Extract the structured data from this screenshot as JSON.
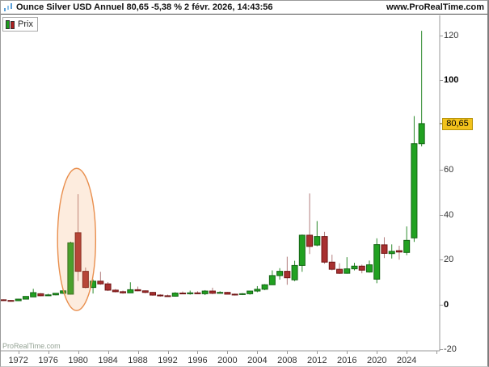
{
  "title_bar": {
    "title": "Ounce Silver USD Annuel 80,65 -5,38 % 2 févr. 2026, 14:43:56",
    "url": "www.ProRealTime.com"
  },
  "legend": {
    "label": "Prix"
  },
  "watermark": "ProRealTime.com",
  "price_tag": {
    "text": "80,65"
  },
  "colors": {
    "up_fill": "#21a121",
    "up_border": "#146414",
    "up_wick": "#2c8a2c",
    "down_fill": "#a83030",
    "down_border": "#701414",
    "down_wick": "#b27d7d",
    "axis": "#999999",
    "tick_label": "#333333",
    "ellipse_stroke": "#e98f4e",
    "ellipse_fill": "rgba(244,160,90,0.20)",
    "tag_bg": "#f2c21c",
    "tag_border": "#b8940c"
  },
  "highlight_ellipse": {
    "center_year": 1979.8,
    "center_value": 29.0,
    "rx_years": 2.55,
    "ry_values": 31.7
  },
  "chart_data": {
    "type": "candlestick",
    "title": "Ounce Silver USD Annuel",
    "instrument": "Ounce Silver USD",
    "timeframe": "Annuel",
    "last_price": 80.65,
    "change_pct": "-5,38 %",
    "timestamp": "2 févr. 2026, 14:43:56",
    "ylim": [
      -20.6,
      128
    ],
    "grid": false,
    "y_ticks": [
      {
        "value": 120,
        "label": "120",
        "bold": false
      },
      {
        "value": 100,
        "label": "100",
        "bold": true
      },
      {
        "value": 60,
        "label": "60",
        "bold": false
      },
      {
        "value": 40,
        "label": "40",
        "bold": false
      },
      {
        "value": 20,
        "label": "20",
        "bold": false
      },
      {
        "value": 0,
        "label": "0",
        "bold": true
      },
      {
        "value": -20,
        "label": "-20",
        "bold": false
      }
    ],
    "x_ticks": [
      {
        "year": 1972,
        "label": "1972"
      },
      {
        "year": 1976,
        "label": "1976"
      },
      {
        "year": 1980,
        "label": "1980"
      },
      {
        "year": 1984,
        "label": "1984"
      },
      {
        "year": 1988,
        "label": "1988"
      },
      {
        "year": 1992,
        "label": "1992"
      },
      {
        "year": 1996,
        "label": "1996"
      },
      {
        "year": 2000,
        "label": "2000"
      },
      {
        "year": 2004,
        "label": "2004"
      },
      {
        "year": 2008,
        "label": "2008"
      },
      {
        "year": 2012,
        "label": "2012"
      },
      {
        "year": 2016,
        "label": "2016"
      },
      {
        "year": 2020,
        "label": "2020"
      },
      {
        "year": 2024,
        "label": "2024"
      },
      {
        "year": 2028,
        "label": ""
      }
    ],
    "ohlc_columns": [
      "year",
      "open",
      "high",
      "low",
      "close"
    ],
    "ohlc": [
      [
        1970,
        2.1,
        2.3,
        1.6,
        1.8
      ],
      [
        1971,
        1.8,
        2.0,
        1.25,
        1.45
      ],
      [
        1972,
        1.7,
        2.55,
        1.6,
        2.4
      ],
      [
        1973,
        2.4,
        3.7,
        2.3,
        3.6
      ],
      [
        1974,
        3.4,
        7.0,
        3.3,
        5.3
      ],
      [
        1975,
        4.8,
        5.1,
        3.7,
        3.9
      ],
      [
        1976,
        3.9,
        4.8,
        3.8,
        4.3
      ],
      [
        1977,
        4.3,
        5.1,
        4.1,
        5.0
      ],
      [
        1978,
        5.0,
        6.4,
        4.7,
        6.1
      ],
      [
        1979,
        4.6,
        28.0,
        4.4,
        27.5
      ],
      [
        1980,
        32.0,
        49.2,
        10.5,
        14.8
      ],
      [
        1981,
        14.8,
        16.5,
        7.2,
        7.6
      ],
      [
        1982,
        7.6,
        11.2,
        4.9,
        10.4
      ],
      [
        1983,
        10.4,
        14.6,
        8.8,
        9.2
      ],
      [
        1984,
        9.2,
        10.0,
        6.0,
        6.4
      ],
      [
        1985,
        6.4,
        6.9,
        5.4,
        5.7
      ],
      [
        1986,
        5.7,
        6.2,
        4.8,
        5.2
      ],
      [
        1987,
        5.2,
        9.9,
        5.1,
        6.6
      ],
      [
        1988,
        6.6,
        8.0,
        5.9,
        6.1
      ],
      [
        1989,
        6.1,
        6.3,
        5.0,
        5.4
      ],
      [
        1990,
        5.4,
        5.6,
        3.9,
        4.2
      ],
      [
        1991,
        4.2,
        4.6,
        3.5,
        3.9
      ],
      [
        1992,
        3.9,
        4.4,
        3.6,
        3.7
      ],
      [
        1993,
        3.7,
        5.5,
        3.5,
        5.1
      ],
      [
        1994,
        5.1,
        5.8,
        4.6,
        4.8
      ],
      [
        1995,
        4.8,
        6.2,
        4.4,
        5.2
      ],
      [
        1996,
        5.2,
        5.9,
        4.7,
        4.8
      ],
      [
        1997,
        4.8,
        6.4,
        4.2,
        6.0
      ],
      [
        1998,
        6.0,
        7.5,
        4.6,
        5.0
      ],
      [
        1999,
        5.0,
        5.9,
        4.9,
        5.4
      ],
      [
        2000,
        5.4,
        5.6,
        4.6,
        4.6
      ],
      [
        2001,
        4.6,
        4.9,
        4.0,
        4.5
      ],
      [
        2002,
        4.5,
        5.1,
        4.2,
        4.8
      ],
      [
        2003,
        4.8,
        6.1,
        4.4,
        6.0
      ],
      [
        2004,
        6.0,
        8.2,
        5.5,
        6.8
      ],
      [
        2005,
        6.8,
        9.1,
        6.4,
        8.8
      ],
      [
        2006,
        8.8,
        15.2,
        8.7,
        12.9
      ],
      [
        2007,
        12.9,
        16.2,
        11.1,
        14.8
      ],
      [
        2008,
        14.8,
        21.3,
        8.8,
        11.9
      ],
      [
        2009,
        11.0,
        19.5,
        10.4,
        17.4
      ],
      [
        2010,
        17.4,
        31.2,
        14.6,
        30.9
      ],
      [
        2011,
        30.9,
        49.5,
        22.5,
        25.9
      ],
      [
        2012,
        26.5,
        37.2,
        26.0,
        30.3
      ],
      [
        2013,
        30.3,
        32.4,
        18.2,
        18.9
      ],
      [
        2014,
        18.9,
        22.2,
        15.2,
        15.7
      ],
      [
        2015,
        15.7,
        18.4,
        13.6,
        13.9
      ],
      [
        2016,
        13.9,
        21.1,
        13.7,
        15.9
      ],
      [
        2017,
        15.9,
        18.6,
        15.2,
        17.1
      ],
      [
        2018,
        17.1,
        17.8,
        13.9,
        15.3
      ],
      [
        2019,
        14.5,
        19.6,
        14.2,
        17.7
      ],
      [
        2020,
        11.3,
        29.5,
        9.5,
        26.7
      ],
      [
        2021,
        26.6,
        30.0,
        20.7,
        22.8
      ],
      [
        2022,
        22.7,
        26.8,
        20.5,
        23.7
      ],
      [
        2023,
        24.0,
        26.2,
        20.0,
        23.4
      ],
      [
        2024,
        23.2,
        34.8,
        22.0,
        28.6
      ],
      [
        2025,
        29.7,
        84.0,
        27.9,
        71.7
      ],
      [
        2026,
        71.7,
        122.0,
        70.5,
        80.65
      ]
    ]
  }
}
